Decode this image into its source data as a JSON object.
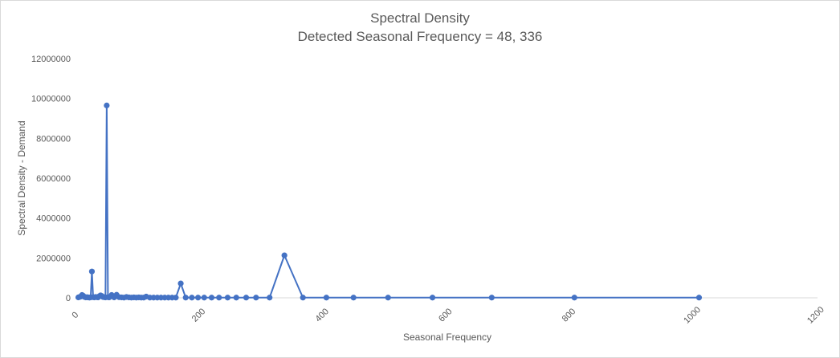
{
  "chart_data": {
    "type": "line",
    "title": "Spectral Density",
    "subtitle": "Detected Seasonal Frequency = 48, 336",
    "xlabel": "Seasonal Frequency",
    "ylabel": "Spectral Density - Demand",
    "xlim": [
      0,
      1200
    ],
    "ylim": [
      0,
      12000000
    ],
    "xticks": [
      "0",
      "200",
      "400",
      "600",
      "800",
      "1000",
      "1200"
    ],
    "yticks": [
      "0",
      "2000000",
      "4000000",
      "6000000",
      "8000000",
      "10000000",
      "12000000"
    ],
    "grid": false,
    "legend": "none",
    "series_color": "#4472c4",
    "x": [
      2,
      4,
      6,
      8,
      10,
      12,
      14,
      16,
      18,
      20,
      22,
      24,
      26,
      28,
      30,
      32,
      34,
      36,
      38,
      40,
      42,
      44,
      46,
      48,
      50,
      52,
      56,
      60,
      64,
      68,
      72,
      76,
      80,
      84,
      88,
      92,
      96,
      100,
      104,
      108,
      112,
      118,
      124,
      130,
      136,
      142,
      148,
      154,
      160,
      168,
      176,
      186,
      196,
      206,
      218,
      230,
      244,
      258,
      274,
      290,
      312,
      336,
      366,
      404,
      448,
      504,
      576,
      672,
      806,
      1008
    ],
    "y": [
      20000,
      40000,
      60000,
      140000,
      100000,
      40000,
      20000,
      30000,
      20000,
      10000,
      20000,
      1320000,
      30000,
      20000,
      40000,
      30000,
      20000,
      80000,
      120000,
      90000,
      40000,
      30000,
      20000,
      9650000,
      30000,
      20000,
      140000,
      20000,
      150000,
      30000,
      20000,
      10000,
      40000,
      20000,
      10000,
      20000,
      10000,
      20000,
      10000,
      10000,
      60000,
      10000,
      10000,
      10000,
      10000,
      10000,
      10000,
      10000,
      10000,
      720000,
      10000,
      10000,
      10000,
      10000,
      10000,
      10000,
      10000,
      10000,
      10000,
      10000,
      10000,
      2130000,
      10000,
      10000,
      10000,
      10000,
      10000,
      10000,
      10000,
      10000
    ]
  }
}
